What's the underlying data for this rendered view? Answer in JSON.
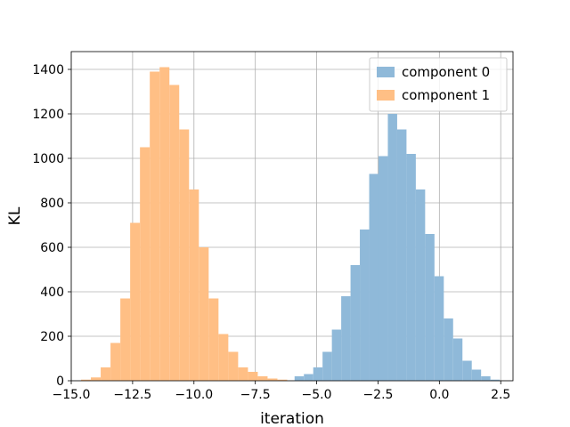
{
  "chart_data": {
    "type": "histogram",
    "title": "",
    "xlabel": "iteration",
    "ylabel": "KL",
    "xlim": [
      -15.0,
      3.0
    ],
    "ylim": [
      0,
      1480
    ],
    "xticks": [
      -15.0,
      -12.5,
      -10.0,
      -7.5,
      -5.0,
      -2.5,
      0.0,
      2.5
    ],
    "xtick_labels": [
      "−15.0",
      "−12.5",
      "−10.0",
      "−7.5",
      "−5.0",
      "−2.5",
      "0.0",
      "2.5"
    ],
    "yticks": [
      0,
      200,
      400,
      600,
      800,
      1000,
      1200,
      1400
    ],
    "ytick_labels": [
      "0",
      "200",
      "400",
      "600",
      "800",
      "1000",
      "1200",
      "1400"
    ],
    "grid": true,
    "legend_position": "top-right",
    "series": [
      {
        "name": "component 0",
        "color": "#8fb9d9",
        "bin_edges": [
          -5.9,
          -5.52,
          -5.14,
          -4.76,
          -4.38,
          -4.0,
          -3.62,
          -3.24,
          -2.86,
          -2.48,
          -2.1,
          -1.72,
          -1.34,
          -0.96,
          -0.58,
          -0.2,
          0.18,
          0.56,
          0.94,
          1.32,
          1.7,
          2.08,
          2.46
        ],
        "counts": [
          20,
          30,
          60,
          130,
          230,
          380,
          520,
          680,
          930,
          1010,
          1200,
          1130,
          1020,
          860,
          660,
          470,
          280,
          190,
          90,
          50,
          20,
          5
        ]
      },
      {
        "name": "component 1",
        "color": "#ffbf85",
        "bin_edges": [
          -14.6,
          -14.2,
          -13.8,
          -13.4,
          -13.0,
          -12.6,
          -12.2,
          -11.8,
          -11.4,
          -11.0,
          -10.6,
          -10.2,
          -9.8,
          -9.4,
          -9.0,
          -8.6,
          -8.2,
          -7.8,
          -7.4,
          -7.0,
          -6.6,
          -6.2
        ],
        "counts": [
          5,
          15,
          60,
          170,
          370,
          710,
          1050,
          1390,
          1410,
          1330,
          1130,
          860,
          600,
          370,
          210,
          130,
          60,
          40,
          20,
          10,
          5
        ]
      }
    ]
  }
}
